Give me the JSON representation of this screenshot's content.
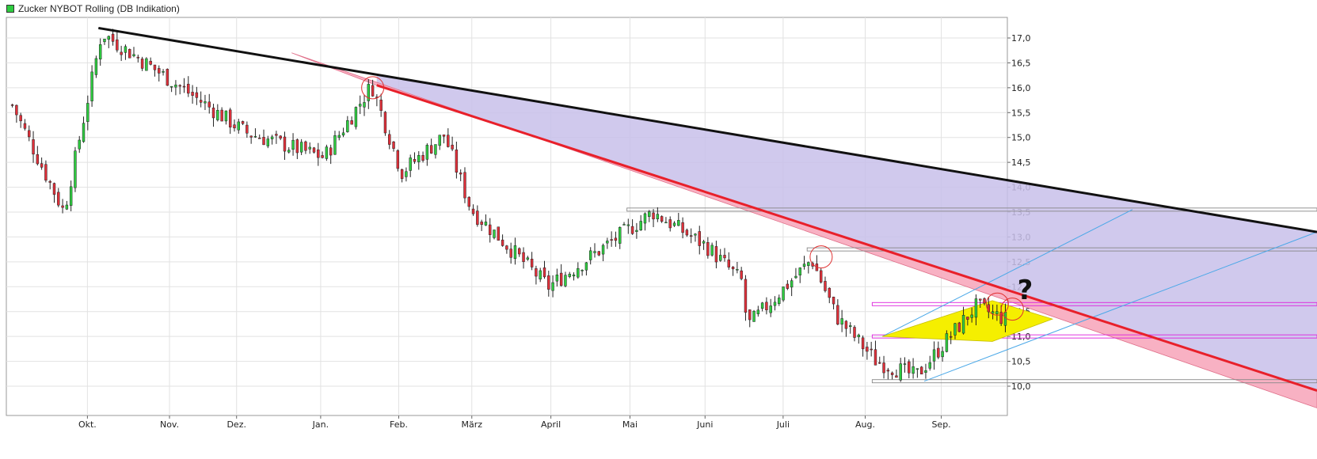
{
  "chart_data": {
    "type": "candlestick",
    "title": "Zucker NYBOT Rolling (DB Indikation)",
    "xlabel": "",
    "ylabel": "",
    "ylim": [
      9.3,
      17.5
    ],
    "y_ticks": [
      "17,0",
      "16,5",
      "16,0",
      "15,5",
      "15,0",
      "14,5",
      "14,0",
      "13,5",
      "13,0",
      "12,5",
      "12,0",
      "11,5",
      "11,0",
      "10,5",
      "10,0"
    ],
    "x_ticks": [
      "Okt.",
      "Nov.",
      "Dez.",
      "Jan.",
      "Feb.",
      "März",
      "April",
      "Mai",
      "Juni",
      "Juli",
      "Aug.",
      "Sep."
    ],
    "grid": true,
    "legend_position": "top-left",
    "colors": {
      "up": "#2ecc40",
      "down": "#e0303a",
      "trendline": "#e8202a",
      "resistance": "#111111",
      "pink_band": "#f7a8bd",
      "lavender_fill": "#c8c0ea",
      "yellow_triangle": "#f5ef00",
      "channel": "#4aa8e8",
      "magenta_line": "#dd22dd",
      "gray_level": "#888888"
    },
    "anchors": [
      {
        "label": "start",
        "value": 15.65
      },
      {
        "label": "Okt. low",
        "value": 13.5
      },
      {
        "label": "Okt. high",
        "value": 17.1
      },
      {
        "label": "Nov.",
        "value": 16.1
      },
      {
        "label": "Dez.",
        "value": 15.1
      },
      {
        "label": "Jan.",
        "value": 14.6
      },
      {
        "label": "Feb. high",
        "value": 16.05
      },
      {
        "label": "Feb. low",
        "value": 14.3
      },
      {
        "label": "März",
        "value": 15.05
      },
      {
        "label": "März low",
        "value": 13.55
      },
      {
        "label": "April",
        "value": 12.0
      },
      {
        "label": "Mai high",
        "value": 13.5
      },
      {
        "label": "Mai",
        "value": 12.8
      },
      {
        "label": "Juni",
        "value": 12.1
      },
      {
        "label": "Juni low",
        "value": 11.2
      },
      {
        "label": "Juli high",
        "value": 12.55
      },
      {
        "label": "Aug.",
        "value": 11.4
      },
      {
        "label": "Aug. low",
        "value": 10.5
      },
      {
        "label": "Sep. low",
        "value": 10.2
      },
      {
        "label": "Sep. high",
        "value": 11.6
      },
      {
        "label": "end",
        "value": 11.35
      }
    ],
    "annotations": {
      "resistance_line": [
        {
          "x": 0.09,
          "y": 17.2
        },
        {
          "x": 1.25,
          "y": 13.3
        }
      ],
      "trend_line": [
        {
          "x": 0.37,
          "y": 16.05
        },
        {
          "x": 1.25,
          "y": 10.3
        }
      ],
      "horizontal_levels": [
        13.55,
        12.75,
        11.65,
        11.0,
        10.1
      ],
      "question_mark": "?"
    }
  }
}
